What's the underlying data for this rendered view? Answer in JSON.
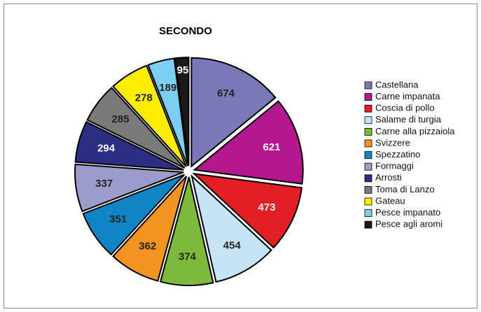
{
  "chart_data": {
    "type": "pie",
    "title": "SECONDO",
    "categories": [
      "Castellana",
      "Carne impanata",
      "Coscia di pollo",
      "Salame di turgia",
      "Carne alla pizzaiola",
      "Svizzere",
      "Spezzatino",
      "Formaggi",
      "Arrosti",
      "Toma di Lanzo",
      "Gateau",
      "Pesce impanato",
      "Pesce agli aromi"
    ],
    "values": [
      674,
      621,
      473,
      454,
      374,
      362,
      351,
      337,
      294,
      285,
      278,
      189,
      95
    ],
    "colors": [
      "#7b78b8",
      "#b5178e",
      "#e31e24",
      "#c6e4f6",
      "#7dba3c",
      "#f39322",
      "#0f85c6",
      "#9c9ccc",
      "#2b2e83",
      "#7a7a7a",
      "#ffed00",
      "#7ccff3",
      "#1a1a1a"
    ],
    "legend": "right"
  }
}
